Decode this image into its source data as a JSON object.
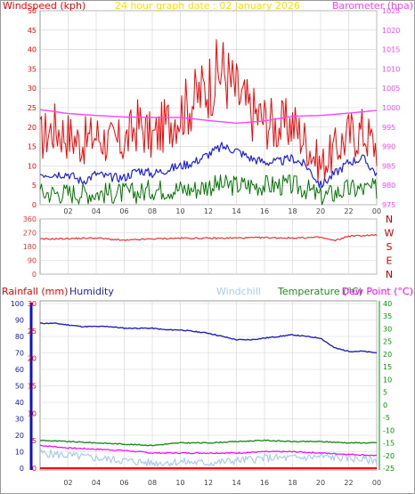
{
  "colors": {
    "background": "#ffffff",
    "frame": "#9a9a9a",
    "plot_bg": "#ffffff",
    "grid": "#d3d3d3",
    "wind_gust": "#ff0000",
    "wind_avg": "#2222dd",
    "wind_low": "#007700",
    "barometer": "#ff44ff",
    "direction": "#ee3333",
    "rain_axis": "#ff0000",
    "humidity": "#2222bb",
    "humidity_axis": "#1111cc",
    "windchill": "#aaccee",
    "temperature": "#228b22",
    "temperature_axis": "#009900",
    "dewpoint": "#ff00ff",
    "title": "#ffdd00",
    "tick_label": "#444444"
  },
  "chart_data": [
    {
      "type": "line",
      "title": "24 hour graph date : 02 January 2026",
      "left_axis_label": "Windspeed (kph)",
      "right_axis_label": "Barometer (hpa)",
      "x_ticks": [
        "02",
        "04",
        "06",
        "08",
        "10",
        "12",
        "14",
        "16",
        "18",
        "20",
        "22",
        "00"
      ],
      "x_range_hours": [
        0,
        24
      ],
      "left_ticks": [
        "0",
        "5",
        "10",
        "15",
        "20",
        "25",
        "30",
        "35",
        "40",
        "45",
        "50"
      ],
      "left_range": [
        0,
        50
      ],
      "right_ticks": [
        "975",
        "980",
        "985",
        "990",
        "995",
        "1000",
        "1005",
        "1010",
        "1015",
        "1020",
        "1025"
      ],
      "right_range": [
        975,
        1025
      ],
      "grid": true,
      "series": [
        {
          "key": "gust",
          "x_hours": [
            0,
            1,
            2,
            3,
            4,
            5,
            6,
            7,
            8,
            9,
            10,
            11,
            12,
            13,
            14,
            15,
            16,
            17,
            18,
            19,
            20,
            21,
            22,
            23,
            24
          ],
          "values": [
            17,
            20,
            18,
            16,
            18,
            16,
            16,
            21,
            17,
            21,
            24,
            27,
            31,
            35,
            29,
            24,
            22,
            20,
            21,
            16,
            10,
            14,
            18,
            19,
            15
          ]
        },
        {
          "key": "average",
          "x_hours": [
            0,
            1,
            2,
            3,
            4,
            5,
            6,
            7,
            8,
            9,
            10,
            11,
            12,
            13,
            14,
            15,
            16,
            17,
            18,
            19,
            20,
            21,
            22,
            23,
            24
          ],
          "values": [
            8,
            8,
            8,
            6,
            8,
            7,
            7,
            9,
            8,
            9,
            10,
            11,
            13,
            15,
            14,
            12,
            11,
            11,
            12,
            10,
            5,
            8,
            11,
            12,
            8
          ]
        },
        {
          "key": "low",
          "x_hours": [
            0,
            1,
            2,
            3,
            4,
            5,
            6,
            7,
            8,
            9,
            10,
            11,
            12,
            13,
            14,
            15,
            16,
            17,
            18,
            19,
            20,
            21,
            22,
            23,
            24
          ],
          "values": [
            3,
            3,
            3,
            3,
            3,
            3,
            3,
            3,
            4,
            4,
            4,
            4,
            5,
            5,
            5,
            5,
            5,
            5,
            5,
            4,
            2,
            3,
            4,
            4,
            4
          ]
        },
        {
          "key": "barometer",
          "x_hours": [
            0,
            2,
            4,
            6,
            8,
            10,
            12,
            14,
            16,
            18,
            20,
            22,
            24
          ],
          "values": [
            999.5,
            998.5,
            998,
            997.6,
            997.5,
            997.5,
            996.7,
            996,
            996.6,
            997.8,
            998,
            998.6,
            999.3
          ]
        }
      ]
    },
    {
      "type": "line",
      "direction_ticks": [
        "0",
        "90",
        "180",
        "270",
        "360"
      ],
      "direction_range": [
        0,
        360
      ],
      "compass_labels": [
        "N",
        "W",
        "S",
        "E",
        "N"
      ],
      "grid": true,
      "series": [
        {
          "key": "direction",
          "x_hours": [
            0,
            2,
            4,
            6,
            8,
            10,
            12,
            14,
            16,
            18,
            20,
            21,
            22,
            24
          ],
          "values": [
            228,
            232,
            236,
            220,
            230,
            235,
            234,
            236,
            238,
            236,
            240,
            218,
            248,
            255
          ]
        }
      ]
    },
    {
      "type": "line",
      "labels": {
        "rainfall": "Rainfall (mm)",
        "humidity": "Humidity",
        "windchill": "Windchill",
        "temperature": "Temperature (°C)",
        "dewpoint": "Dew Point (°C)"
      },
      "humidity_ticks": [
        "0",
        "10",
        "20",
        "30",
        "40",
        "50",
        "60",
        "70",
        "80",
        "90",
        "100"
      ],
      "humidity_range": [
        0,
        100
      ],
      "rain_ticks": [
        "0",
        "5",
        "10",
        "15",
        "20",
        "25",
        "30"
      ],
      "rain_range": [
        0,
        30
      ],
      "temp_ticks": [
        "-25",
        "-20",
        "-15",
        "-10",
        "-5",
        "0",
        "5",
        "10",
        "15",
        "20",
        "25",
        "30",
        "35",
        "40"
      ],
      "temp_range": [
        -25,
        40
      ],
      "grid": true,
      "series": [
        {
          "key": "humidity",
          "x_hours": [
            0,
            1,
            2,
            3,
            4,
            5,
            6,
            7,
            8,
            9,
            10,
            11,
            12,
            13,
            14,
            15,
            16,
            17,
            18,
            19,
            20,
            21,
            22,
            23,
            24
          ],
          "values": [
            88,
            88,
            87,
            86,
            86,
            86,
            85,
            85,
            85,
            84,
            84,
            83,
            82,
            80,
            78,
            78,
            79,
            80,
            81,
            80,
            79,
            73,
            71,
            71,
            70
          ]
        },
        {
          "key": "rainfall",
          "x_hours": [
            0,
            24
          ],
          "values": [
            0,
            0
          ]
        },
        {
          "key": "temperature",
          "x_hours": [
            0,
            2,
            4,
            6,
            8,
            10,
            12,
            14,
            16,
            18,
            20,
            22,
            24
          ],
          "values": [
            -14,
            -14.5,
            -15,
            -15.5,
            -16,
            -15,
            -15,
            -14.5,
            -14,
            -14.5,
            -14.5,
            -15,
            -15
          ]
        },
        {
          "key": "dewpoint",
          "x_hours": [
            0,
            2,
            4,
            6,
            8,
            10,
            12,
            14,
            16,
            18,
            20,
            22,
            24
          ],
          "values": [
            -16,
            -17,
            -17.5,
            -18,
            -19,
            -19,
            -19,
            -19,
            -18.5,
            -18.5,
            -19,
            -19.5,
            -20
          ]
        },
        {
          "key": "windchill",
          "x_hours": [
            0,
            2,
            4,
            6,
            8,
            10,
            12,
            14,
            16,
            18,
            20,
            22,
            24
          ],
          "values": [
            -19,
            -20,
            -21,
            -22,
            -23,
            -22.5,
            -23,
            -22,
            -21,
            -21,
            -20.5,
            -21,
            -22
          ]
        }
      ]
    }
  ]
}
